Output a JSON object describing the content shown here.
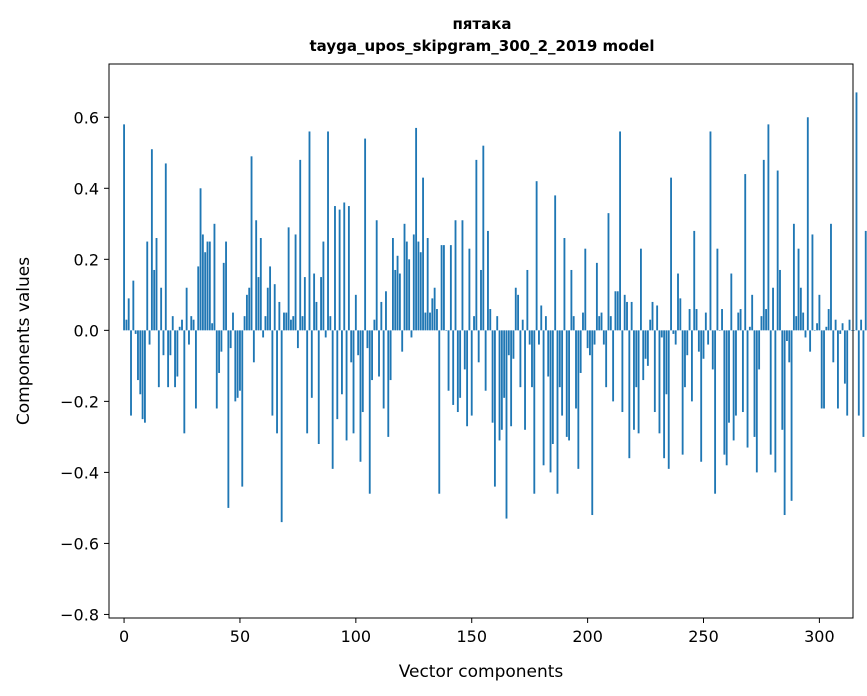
{
  "chart_data": {
    "type": "bar",
    "title": "пятака",
    "subtitle": "tayga_upos_skipgram_300_2_2019 model",
    "xlabel": "Vector components",
    "ylabel": "Components values",
    "xlim": [
      -6.5,
      314.5
    ],
    "ylim": [
      -0.81,
      0.75
    ],
    "xticks": [
      0,
      50,
      100,
      150,
      200,
      250,
      300
    ],
    "yticks": [
      -0.8,
      -0.6,
      -0.4,
      -0.2,
      0.0,
      0.2,
      0.4,
      0.6
    ],
    "ytick_labels": [
      "−0.8",
      "−0.6",
      "−0.4",
      "−0.2",
      "0.0",
      "0.2",
      "0.4",
      "0.6"
    ],
    "grid": false,
    "bar_color": "#1f77b4",
    "values": [
      0.58,
      0.03,
      0.09,
      -0.24,
      0.14,
      -0.01,
      -0.14,
      -0.18,
      -0.25,
      -0.26,
      0.25,
      -0.04,
      0.51,
      0.17,
      0.26,
      -0.16,
      0.12,
      -0.07,
      0.47,
      -0.16,
      -0.07,
      0.04,
      -0.16,
      -0.13,
      0.01,
      0.03,
      -0.29,
      0.12,
      -0.04,
      0.04,
      0.03,
      -0.22,
      0.18,
      0.4,
      0.27,
      0.22,
      0.25,
      0.25,
      0.02,
      0.3,
      -0.22,
      -0.12,
      -0.06,
      0.19,
      0.25,
      -0.5,
      -0.05,
      0.05,
      -0.2,
      -0.19,
      -0.17,
      -0.44,
      0.04,
      0.1,
      0.12,
      0.49,
      -0.09,
      0.31,
      0.15,
      0.26,
      -0.02,
      0.04,
      0.12,
      0.18,
      -0.24,
      0.13,
      -0.29,
      0.08,
      -0.54,
      0.05,
      0.05,
      0.29,
      0.03,
      0.04,
      0.27,
      -0.05,
      0.48,
      0.04,
      0.15,
      -0.29,
      0.56,
      -0.19,
      0.16,
      0.08,
      -0.32,
      0.15,
      0.25,
      -0.02,
      0.56,
      0.04,
      -0.39,
      0.35,
      -0.25,
      0.34,
      -0.18,
      0.36,
      -0.31,
      0.35,
      -0.09,
      -0.29,
      0.1,
      -0.07,
      -0.37,
      -0.23,
      0.54,
      -0.05,
      -0.46,
      -0.14,
      0.03,
      0.31,
      -0.13,
      0.08,
      -0.22,
      0.11,
      -0.3,
      -0.14,
      0.26,
      0.17,
      0.21,
      0.16,
      -0.06,
      0.3,
      0.25,
      0.2,
      -0.02,
      0.27,
      0.57,
      0.25,
      0.22,
      0.43,
      0.05,
      0.26,
      0.05,
      0.09,
      0.12,
      0.06,
      -0.46,
      0.24,
      0.24,
      0.0,
      -0.17,
      0.24,
      -0.21,
      0.31,
      -0.23,
      -0.19,
      0.31,
      -0.11,
      -0.27,
      0.23,
      -0.24,
      0.04,
      0.48,
      -0.09,
      0.17,
      0.52,
      -0.17,
      0.28,
      0.06,
      -0.26,
      -0.44,
      0.04,
      -0.31,
      -0.28,
      -0.19,
      -0.53,
      -0.07,
      -0.27,
      -0.08,
      0.12,
      0.1,
      -0.16,
      0.03,
      -0.28,
      0.17,
      -0.04,
      -0.16,
      -0.46,
      0.42,
      -0.04,
      0.07,
      -0.38,
      0.04,
      -0.13,
      -0.4,
      -0.32,
      0.38,
      -0.46,
      -0.16,
      -0.24,
      0.26,
      -0.3,
      -0.31,
      0.17,
      0.04,
      -0.22,
      -0.39,
      -0.12,
      0.05,
      0.23,
      -0.05,
      -0.07,
      -0.52,
      -0.04,
      0.19,
      0.04,
      0.05,
      -0.04,
      -0.16,
      0.33,
      0.04,
      -0.2,
      0.11,
      0.11,
      0.56,
      -0.23,
      0.1,
      0.08,
      -0.36,
      0.08,
      -0.28,
      -0.16,
      -0.29,
      0.23,
      -0.14,
      -0.08,
      -0.1,
      0.03,
      0.08,
      -0.23,
      0.07,
      -0.29,
      -0.02,
      -0.36,
      -0.18,
      -0.39,
      0.43,
      -0.01,
      -0.04,
      0.16,
      0.09,
      -0.35,
      -0.16,
      -0.07,
      0.06,
      -0.2,
      0.28,
      0.06,
      -0.06,
      -0.37,
      -0.08,
      0.05,
      -0.04,
      0.56,
      -0.11,
      -0.46,
      0.23,
      0.0,
      0.06,
      -0.35,
      -0.38,
      -0.26,
      0.16,
      -0.31,
      -0.24,
      0.05,
      0.06,
      -0.23,
      0.44,
      -0.33,
      0.01,
      0.1,
      -0.3,
      -0.4,
      -0.11,
      0.04,
      0.48,
      0.06,
      0.58,
      -0.35,
      0.12,
      -0.4,
      0.45,
      0.17,
      -0.28,
      -0.52,
      -0.03,
      -0.09,
      -0.48,
      0.3,
      0.04,
      0.23,
      0.12,
      0.05,
      -0.02,
      0.6,
      -0.06,
      0.27,
      0.0,
      0.02,
      0.1,
      -0.22,
      -0.22,
      0.01,
      0.06,
      0.3,
      -0.09,
      0.03,
      -0.22,
      -0.01,
      0.02,
      -0.15,
      -0.24,
      0.03,
      0.0,
      0.0,
      0.67,
      -0.24,
      0.03,
      -0.3,
      0.28
    ]
  }
}
